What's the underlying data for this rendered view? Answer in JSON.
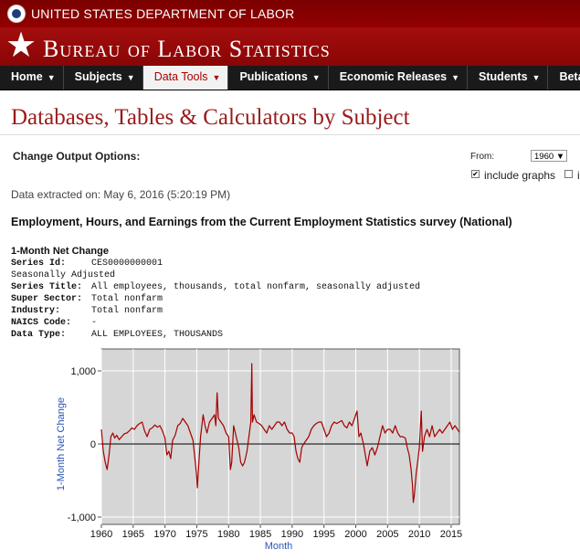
{
  "header": {
    "department": "UNITED STATES DEPARTMENT OF LABOR",
    "bureau": "Bureau of Labor Statistics",
    "star": "★"
  },
  "nav": {
    "items": [
      {
        "label": "Home",
        "caret": "▼"
      },
      {
        "label": "Subjects",
        "caret": "▼"
      },
      {
        "label": "Data Tools",
        "caret": "▼"
      },
      {
        "label": "Publications",
        "caret": "▼"
      },
      {
        "label": "Economic Releases",
        "caret": "▼"
      },
      {
        "label": "Students",
        "caret": "▼"
      },
      {
        "label": "Beta",
        "caret": "▼"
      }
    ],
    "active_index": 2
  },
  "page": {
    "title": "Databases, Tables & Calculators by Subject",
    "change_output": "Change Output Options:",
    "from_label": "From:",
    "from_value": "1960 ▼",
    "include_graphs_label": "include graphs",
    "include_graphs_check": "✔",
    "cut_label": "i",
    "extracted": "Data extracted on: May 6, 2016 (5:20:19 PM)",
    "survey_title": "Employment, Hours, and Earnings from the Current Employment Statistics survey (National)",
    "subhead": "1-Month Net Change"
  },
  "series": {
    "id_label": "Series Id:",
    "id": "CES0000000001",
    "adjustment": "Seasonally Adjusted",
    "title_label": "Series Title:",
    "title": "All employees, thousands, total nonfarm, seasonally adjusted",
    "super_sector_label": "Super Sector:",
    "super_sector": "Total nonfarm",
    "industry_label": "Industry:",
    "industry": "Total nonfarm",
    "naics_label": "NAICS Code:",
    "naics": "-",
    "data_type_label": "Data Type:",
    "data_type": "ALL EMPLOYEES, THOUSANDS"
  },
  "colors": {
    "line": "#a50000",
    "plot_bg": "#d6d6d6",
    "axis_label": "#2a55b5"
  },
  "chart_data": {
    "type": "line",
    "xlabel": "Month",
    "ylabel": "1-Month Net Change",
    "x_ticks": [
      1960,
      1965,
      1970,
      1975,
      1980,
      1985,
      1990,
      1995,
      2000,
      2005,
      2010,
      2015
    ],
    "y_ticks": [
      1000,
      0,
      -1000
    ],
    "y_tick_labels": [
      "1,000",
      "0",
      "-1,000"
    ],
    "xlim": [
      1960,
      2016.3
    ],
    "ylim": [
      -1000,
      1000
    ],
    "grid": true,
    "series": [
      {
        "values_note": "approximate points (year, net change in thousands)",
        "points": [
          [
            1960.0,
            200
          ],
          [
            1960.3,
            -100
          ],
          [
            1960.6,
            -250
          ],
          [
            1960.9,
            -350
          ],
          [
            1961.2,
            -150
          ],
          [
            1961.5,
            100
          ],
          [
            1961.8,
            150
          ],
          [
            1962.1,
            80
          ],
          [
            1962.4,
            120
          ],
          [
            1962.8,
            60
          ],
          [
            1963.2,
            100
          ],
          [
            1963.6,
            140
          ],
          [
            1964.0,
            150
          ],
          [
            1964.4,
            180
          ],
          [
            1964.8,
            220
          ],
          [
            1965.2,
            200
          ],
          [
            1965.6,
            250
          ],
          [
            1966.0,
            280
          ],
          [
            1966.4,
            300
          ],
          [
            1966.8,
            180
          ],
          [
            1967.2,
            100
          ],
          [
            1967.6,
            200
          ],
          [
            1968.0,
            220
          ],
          [
            1968.4,
            260
          ],
          [
            1968.8,
            230
          ],
          [
            1969.2,
            250
          ],
          [
            1969.6,
            180
          ],
          [
            1970.0,
            80
          ],
          [
            1970.3,
            -150
          ],
          [
            1970.6,
            -100
          ],
          [
            1970.9,
            -200
          ],
          [
            1971.2,
            50
          ],
          [
            1971.6,
            120
          ],
          [
            1972.0,
            250
          ],
          [
            1972.4,
            280
          ],
          [
            1972.8,
            350
          ],
          [
            1973.2,
            300
          ],
          [
            1973.6,
            250
          ],
          [
            1974.0,
            150
          ],
          [
            1974.4,
            50
          ],
          [
            1974.7,
            -200
          ],
          [
            1975.0,
            -450
          ],
          [
            1975.1,
            -600
          ],
          [
            1975.3,
            -300
          ],
          [
            1975.6,
            100
          ],
          [
            1976.0,
            400
          ],
          [
            1976.3,
            250
          ],
          [
            1976.6,
            150
          ],
          [
            1977.0,
            300
          ],
          [
            1977.4,
            350
          ],
          [
            1977.8,
            400
          ],
          [
            1978.0,
            250
          ],
          [
            1978.2,
            700
          ],
          [
            1978.4,
            350
          ],
          [
            1978.8,
            300
          ],
          [
            1979.2,
            250
          ],
          [
            1979.6,
            150
          ],
          [
            1980.0,
            100
          ],
          [
            1980.3,
            -350
          ],
          [
            1980.5,
            -250
          ],
          [
            1980.8,
            250
          ],
          [
            1981.2,
            100
          ],
          [
            1981.6,
            -50
          ],
          [
            1981.9,
            -250
          ],
          [
            1982.2,
            -300
          ],
          [
            1982.5,
            -250
          ],
          [
            1982.9,
            -100
          ],
          [
            1983.2,
            100
          ],
          [
            1983.5,
            300
          ],
          [
            1983.65,
            1100
          ],
          [
            1983.75,
            300
          ],
          [
            1984.0,
            400
          ],
          [
            1984.4,
            300
          ],
          [
            1984.8,
            280
          ],
          [
            1985.2,
            250
          ],
          [
            1985.6,
            200
          ],
          [
            1986.0,
            150
          ],
          [
            1986.4,
            250
          ],
          [
            1986.8,
            200
          ],
          [
            1987.2,
            250
          ],
          [
            1987.6,
            300
          ],
          [
            1988.0,
            300
          ],
          [
            1988.4,
            250
          ],
          [
            1988.8,
            300
          ],
          [
            1989.2,
            200
          ],
          [
            1989.6,
            150
          ],
          [
            1990.0,
            150
          ],
          [
            1990.3,
            100
          ],
          [
            1990.6,
            -100
          ],
          [
            1990.9,
            -200
          ],
          [
            1991.2,
            -250
          ],
          [
            1991.5,
            -50
          ],
          [
            1991.8,
            0
          ],
          [
            1992.2,
            50
          ],
          [
            1992.6,
            100
          ],
          [
            1993.0,
            200
          ],
          [
            1993.4,
            250
          ],
          [
            1993.8,
            280
          ],
          [
            1994.2,
            300
          ],
          [
            1994.6,
            300
          ],
          [
            1995.0,
            200
          ],
          [
            1995.4,
            100
          ],
          [
            1995.8,
            150
          ],
          [
            1996.2,
            250
          ],
          [
            1996.6,
            300
          ],
          [
            1997.0,
            280
          ],
          [
            1997.4,
            300
          ],
          [
            1997.8,
            320
          ],
          [
            1998.2,
            250
          ],
          [
            1998.6,
            220
          ],
          [
            1999.0,
            300
          ],
          [
            1999.4,
            250
          ],
          [
            1999.8,
            350
          ],
          [
            2000.2,
            450
          ],
          [
            2000.5,
            100
          ],
          [
            2000.8,
            150
          ],
          [
            2001.2,
            0
          ],
          [
            2001.5,
            -150
          ],
          [
            2001.8,
            -300
          ],
          [
            2002.2,
            -100
          ],
          [
            2002.6,
            -50
          ],
          [
            2003.0,
            -150
          ],
          [
            2003.4,
            -50
          ],
          [
            2003.8,
            100
          ],
          [
            2004.2,
            250
          ],
          [
            2004.6,
            150
          ],
          [
            2005.0,
            200
          ],
          [
            2005.4,
            200
          ],
          [
            2005.8,
            150
          ],
          [
            2006.2,
            250
          ],
          [
            2006.6,
            150
          ],
          [
            2007.0,
            100
          ],
          [
            2007.4,
            100
          ],
          [
            2007.8,
            80
          ],
          [
            2008.1,
            -50
          ],
          [
            2008.4,
            -150
          ],
          [
            2008.7,
            -350
          ],
          [
            2008.9,
            -550
          ],
          [
            2009.05,
            -800
          ],
          [
            2009.2,
            -700
          ],
          [
            2009.5,
            -400
          ],
          [
            2009.8,
            -200
          ],
          [
            2010.0,
            -50
          ],
          [
            2010.3,
            450
          ],
          [
            2010.5,
            -100
          ],
          [
            2010.8,
            100
          ],
          [
            2011.2,
            200
          ],
          [
            2011.6,
            100
          ],
          [
            2012.0,
            250
          ],
          [
            2012.4,
            100
          ],
          [
            2012.8,
            150
          ],
          [
            2013.2,
            200
          ],
          [
            2013.6,
            150
          ],
          [
            2014.0,
            200
          ],
          [
            2014.4,
            250
          ],
          [
            2014.8,
            300
          ],
          [
            2015.2,
            200
          ],
          [
            2015.6,
            250
          ],
          [
            2016.0,
            200
          ],
          [
            2016.3,
            160
          ]
        ]
      }
    ]
  }
}
